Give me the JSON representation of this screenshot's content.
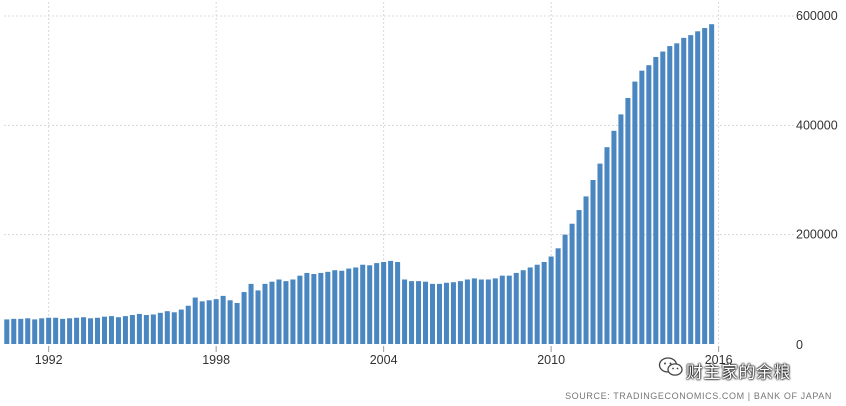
{
  "chart_data": {
    "type": "bar",
    "title": "",
    "xlabel": "",
    "ylabel": "",
    "x_ticks": [
      "1992",
      "1998",
      "2004",
      "2010",
      "2016"
    ],
    "y_ticks": [
      "0",
      "200000",
      "400000",
      "600000"
    ],
    "xlim": [
      1990.4,
      2018.7
    ],
    "ylim": [
      0,
      600000
    ],
    "grid": true,
    "legend": "none",
    "bar_color": "#4a86c0",
    "grid_color": "#d8d8d8",
    "series": [
      {
        "x_start": 1990.5,
        "x_step": 0.25,
        "values": [
          45000,
          46000,
          46000,
          47000,
          45000,
          47000,
          48000,
          48000,
          46000,
          47000,
          48000,
          49000,
          47000,
          48000,
          50000,
          51000,
          49000,
          51000,
          53000,
          55000,
          53000,
          54000,
          57000,
          60000,
          58000,
          63000,
          70000,
          85000,
          78000,
          80000,
          82000,
          88000,
          80000,
          75000,
          95000,
          110000,
          98000,
          110000,
          114000,
          118000,
          115000,
          118000,
          125000,
          130000,
          128000,
          130000,
          132000,
          135000,
          134000,
          138000,
          140000,
          145000,
          144000,
          148000,
          150000,
          152000,
          150000,
          118000,
          115000,
          115000,
          114000,
          110000,
          110000,
          112000,
          113000,
          115000,
          118000,
          120000,
          118000,
          118000,
          120000,
          125000,
          125000,
          130000,
          135000,
          140000,
          145000,
          150000,
          160000,
          175000,
          200000,
          220000,
          245000,
          270000,
          300000,
          330000,
          360000,
          390000,
          420000,
          450000,
          480000,
          500000,
          510000,
          525000,
          535000,
          545000,
          550000,
          560000,
          565000,
          572000,
          578000,
          585000
        ]
      }
    ]
  },
  "watermark": {
    "text": "财主家的余粮",
    "icon": "wechat-icon"
  },
  "source": "SOURCE: TRADINGECONOMICS.COM  |  BANK OF JAPAN"
}
